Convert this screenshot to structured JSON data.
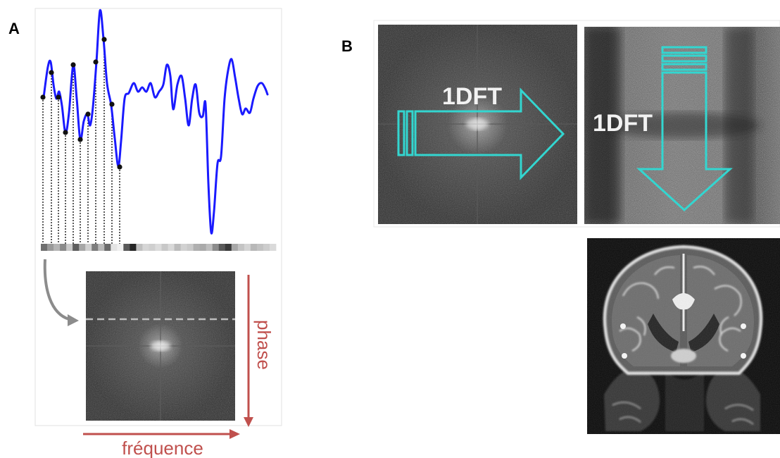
{
  "panels": {
    "a_label": "A",
    "b_label": "B"
  },
  "panel_a": {
    "frequency_label": "fréquence",
    "phase_label": "phase"
  },
  "panel_b": {
    "horizontal_arrow_label": "1DFT",
    "vertical_arrow_label": "1DFT"
  },
  "colors": {
    "signal_curve": "#1a1aff",
    "axis_arrows": "#c0504d",
    "dft_arrows": "#33d6d0",
    "sample_dots": "#111111",
    "fill_arrow": "#8c8c8c"
  },
  "icons": {
    "fill_arrow": "curved-arrow-icon",
    "frequency_arrow": "right-arrow-icon",
    "phase_arrow": "down-arrow-icon"
  }
}
